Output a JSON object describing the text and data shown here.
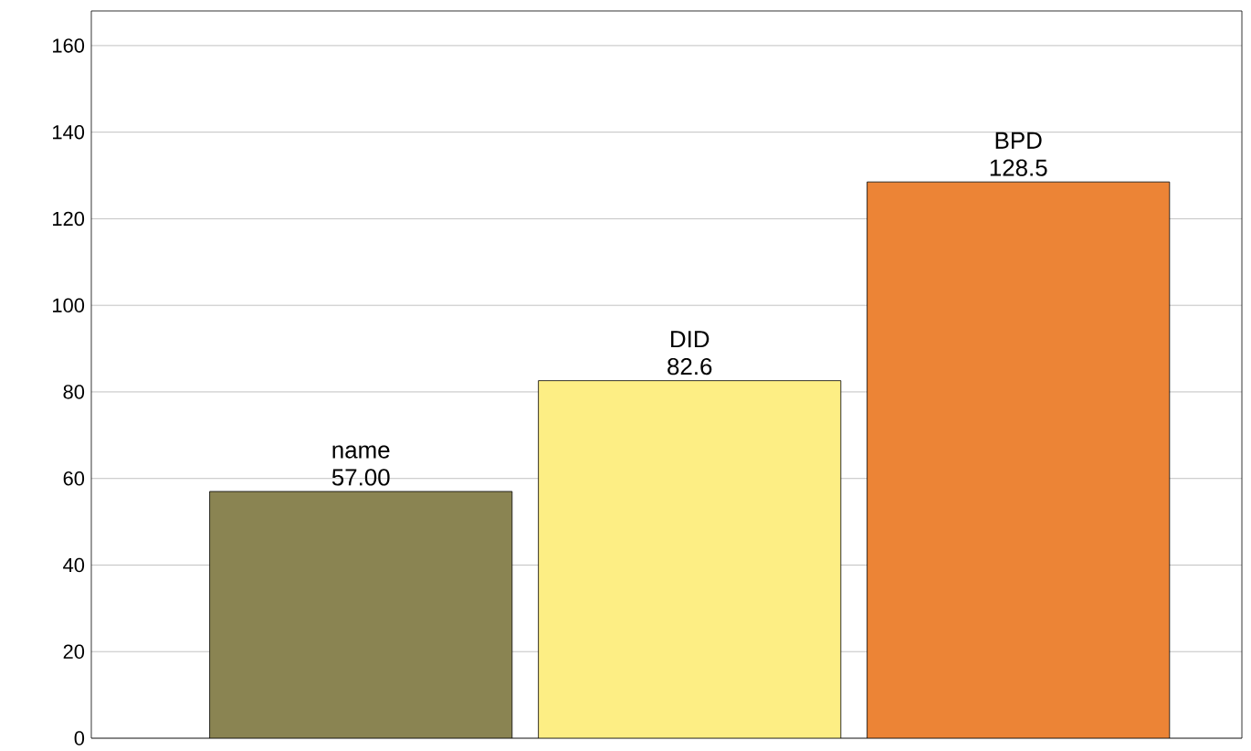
{
  "chart_data": {
    "type": "bar",
    "categories": [
      "name",
      "DID",
      "BPD"
    ],
    "values": [
      57.0,
      82.6,
      128.5
    ],
    "value_labels": [
      "57.00",
      "82.6",
      "128.5"
    ],
    "colors": [
      "#8a8452",
      "#fdee84",
      "#ec8436"
    ],
    "ylim": [
      0,
      168
    ],
    "yticks": [
      0,
      20,
      40,
      60,
      80,
      100,
      120,
      140,
      160
    ],
    "grid": "y"
  }
}
